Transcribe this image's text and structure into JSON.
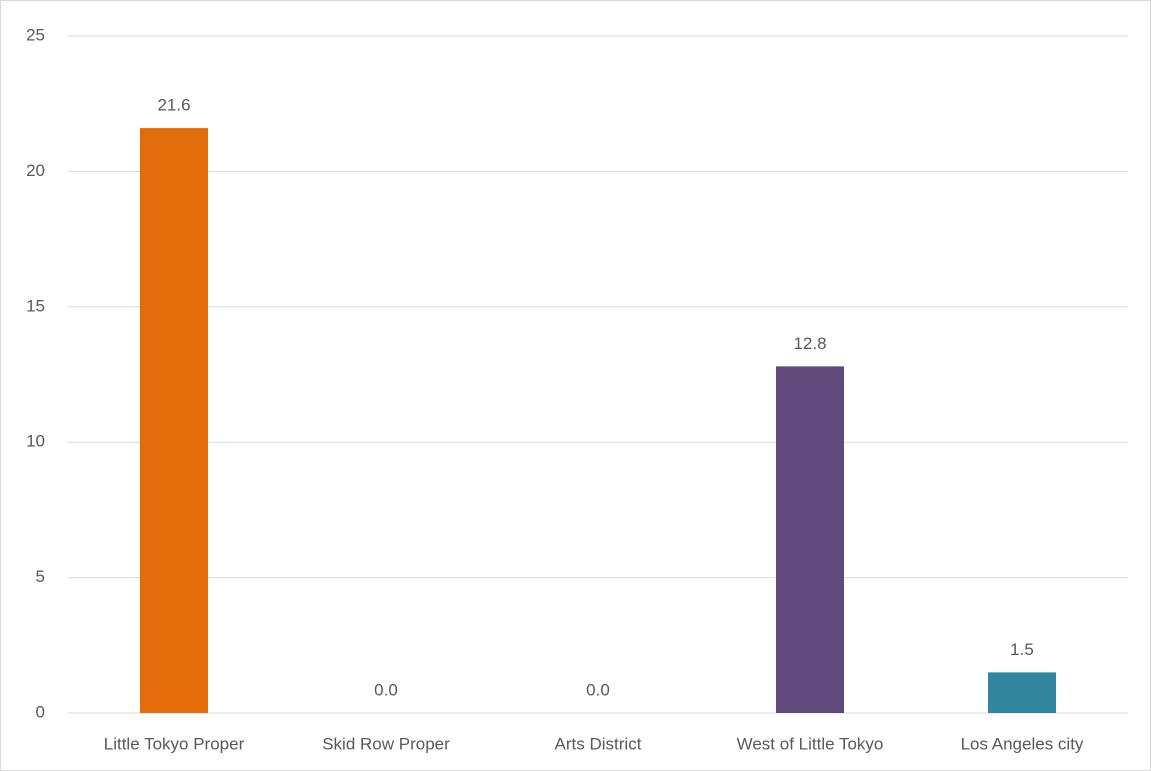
{
  "chart_data": {
    "type": "bar",
    "categories": [
      "Little Tokyo Proper",
      "Skid Row Proper",
      "Arts District",
      "West of Little Tokyo",
      "Los Angeles city"
    ],
    "values": [
      21.6,
      0,
      0,
      12.8,
      1.5
    ],
    "value_labels": [
      "21.6",
      "0.0",
      "0.0",
      "12.8",
      "1.5"
    ],
    "colors": [
      "#e36c0a",
      null,
      null,
      "#604a7b",
      "#31859c"
    ],
    "ylim": [
      0,
      25
    ],
    "yticks": [
      0,
      5,
      10,
      15,
      20,
      25
    ],
    "grid": true
  }
}
